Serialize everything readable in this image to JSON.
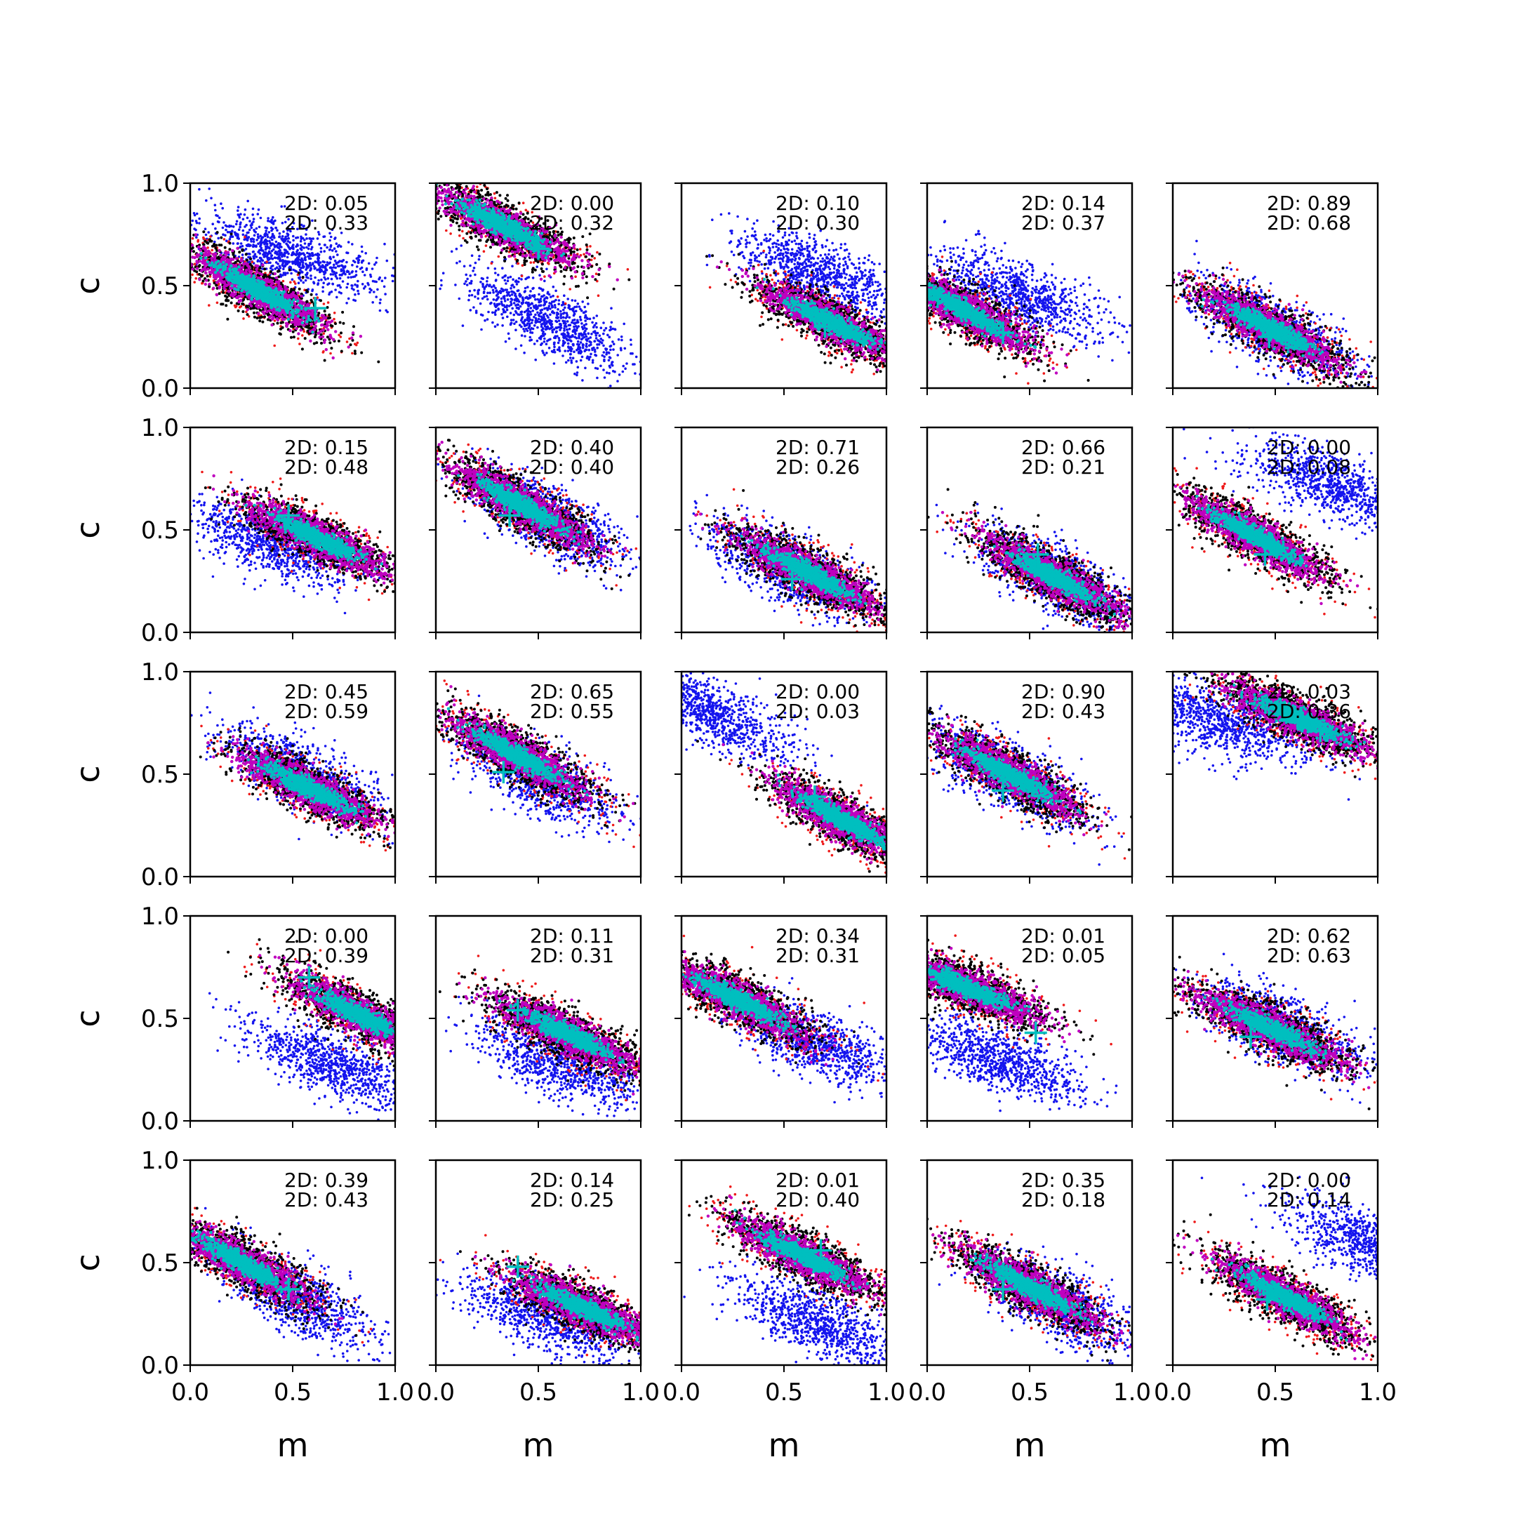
{
  "colors": {
    "blue": "#1414ee",
    "red": "#ee1a1a",
    "black": "#000000",
    "magenta": "#bf00bf",
    "cyan": "#00bfbf"
  },
  "chart_data": {
    "type": "scatter",
    "layout": "5x5 grid of scatter subplots",
    "xlabel": "m",
    "ylabel": "c",
    "xlim": [
      0.0,
      1.0
    ],
    "ylim": [
      0.0,
      1.0
    ],
    "xticks": [
      "0.0",
      "0.5",
      "1.0"
    ],
    "yticks": [
      "0.0",
      "0.5",
      "1.0"
    ],
    "grid": false,
    "legend": "none",
    "series_colors": [
      "blue",
      "red",
      "black",
      "magenta",
      "cyan"
    ],
    "marker": "cyan plus at the true parameter value",
    "panels": [
      {
        "label1": "2D: 0.05",
        "label2": "2D: 0.33",
        "blue": [
          0.5,
          0.65,
          -0.35
        ],
        "red": [
          0.33,
          0.48,
          -0.57
        ],
        "cross": [
          0.61,
          0.39
        ]
      },
      {
        "label1": "2D: 0.00",
        "label2": "2D: 0.32",
        "blue": [
          0.55,
          0.33,
          -0.55
        ],
        "red": [
          0.33,
          0.79,
          -0.52
        ],
        "cross": [
          0.5,
          0.68
        ]
      },
      {
        "label1": "2D: 0.10",
        "label2": "2D: 0.30",
        "blue": [
          0.68,
          0.56,
          -0.44
        ],
        "red": [
          0.73,
          0.32,
          -0.5
        ],
        "cross": [
          0.7,
          0.3
        ]
      },
      {
        "label1": "2D: 0.14",
        "label2": "2D: 0.37",
        "blue": [
          0.45,
          0.45,
          -0.4
        ],
        "red": [
          0.18,
          0.38,
          -0.55
        ],
        "cross": [
          0.37,
          0.27
        ]
      },
      {
        "label1": "2D: 0.89",
        "label2": "2D: 0.68",
        "blue": [
          0.48,
          0.29,
          -0.52
        ],
        "red": [
          0.48,
          0.29,
          -0.52
        ],
        "cross": [
          0.47,
          0.25
        ]
      },
      {
        "label1": "2D: 0.15",
        "label2": "2D: 0.48",
        "blue": [
          0.38,
          0.44,
          -0.4
        ],
        "red": [
          0.62,
          0.46,
          -0.48
        ],
        "cross": [
          0.48,
          0.57
        ]
      },
      {
        "label1": "2D: 0.40",
        "label2": "2D: 0.40",
        "blue": [
          0.55,
          0.55,
          -0.55
        ],
        "red": [
          0.42,
          0.62,
          -0.58
        ],
        "cross": [
          0.36,
          0.57
        ]
      },
      {
        "label1": "2D: 0.71",
        "label2": "2D: 0.26",
        "blue": [
          0.52,
          0.31,
          -0.5
        ],
        "red": [
          0.62,
          0.29,
          -0.52
        ],
        "cross": [
          0.54,
          0.26
        ]
      },
      {
        "label1": "2D: 0.66",
        "label2": "2D: 0.21",
        "blue": [
          0.62,
          0.27,
          -0.55
        ],
        "red": [
          0.62,
          0.27,
          -0.55
        ],
        "cross": [
          0.54,
          0.38
        ]
      },
      {
        "label1": "2D: 0.00",
        "label2": "2D: 0.08",
        "blue": [
          0.78,
          0.72,
          -0.4
        ],
        "red": [
          0.4,
          0.47,
          -0.55
        ],
        "cross": [
          0.45,
          0.38
        ]
      },
      {
        "label1": "2D: 0.45",
        "label2": "2D: 0.59",
        "blue": [
          0.55,
          0.5,
          -0.5
        ],
        "red": [
          0.58,
          0.43,
          -0.5
        ],
        "cross": [
          0.58,
          0.45
        ]
      },
      {
        "label1": "2D: 0.65",
        "label2": "2D: 0.55",
        "blue": [
          0.5,
          0.48,
          -0.55
        ],
        "red": [
          0.4,
          0.59,
          -0.55
        ],
        "cross": [
          0.33,
          0.51
        ]
      },
      {
        "label1": "2D: 0.00",
        "label2": "2D: 0.03",
        "blue": [
          0.15,
          0.8,
          -0.5
        ],
        "red": [
          0.78,
          0.28,
          -0.55
        ],
        "cross": [
          0.65,
          0.39
        ]
      },
      {
        "label1": "2D: 0.90",
        "label2": "2D: 0.43",
        "blue": [
          0.38,
          0.5,
          -0.55
        ],
        "red": [
          0.4,
          0.5,
          -0.55
        ],
        "cross": [
          0.37,
          0.42
        ]
      },
      {
        "label1": "2D: 0.03",
        "label2": "2D: 0.36",
        "blue": [
          0.25,
          0.75,
          -0.35
        ],
        "red": [
          0.62,
          0.77,
          -0.45
        ],
        "cross": [
          0.72,
          0.71
        ]
      },
      {
        "label1": "2D: 0.00",
        "label2": "2D: 0.39",
        "blue": [
          0.7,
          0.28,
          -0.4
        ],
        "red": [
          0.82,
          0.52,
          -0.52
        ],
        "cross": [
          0.58,
          0.7
        ]
      },
      {
        "label1": "2D: 0.11",
        "label2": "2D: 0.31",
        "blue": [
          0.6,
          0.28,
          -0.4
        ],
        "red": [
          0.65,
          0.42,
          -0.48
        ],
        "cross": [
          0.4,
          0.54
        ]
      },
      {
        "label1": "2D: 0.34",
        "label2": "2D: 0.31",
        "blue": [
          0.65,
          0.38,
          -0.45
        ],
        "red": [
          0.28,
          0.59,
          -0.52
        ],
        "cross": [
          0.3,
          0.57
        ]
      },
      {
        "label1": "2D: 0.01",
        "label2": "2D: 0.05",
        "blue": [
          0.35,
          0.3,
          -0.42
        ],
        "red": [
          0.2,
          0.65,
          -0.42
        ],
        "cross": [
          0.53,
          0.43
        ]
      },
      {
        "label1": "2D: 0.62",
        "label2": "2D: 0.63",
        "blue": [
          0.55,
          0.45,
          -0.45
        ],
        "red": [
          0.48,
          0.45,
          -0.47
        ],
        "cross": [
          0.38,
          0.41
        ]
      },
      {
        "label1": "2D: 0.39",
        "label2": "2D: 0.43",
        "blue": [
          0.5,
          0.33,
          -0.55
        ],
        "red": [
          0.25,
          0.5,
          -0.55
        ],
        "cross": [
          0.48,
          0.37
        ]
      },
      {
        "label1": "2D: 0.14",
        "label2": "2D: 0.25",
        "blue": [
          0.55,
          0.23,
          -0.4
        ],
        "red": [
          0.72,
          0.28,
          -0.45
        ],
        "cross": [
          0.4,
          0.48
        ]
      },
      {
        "label1": "2D: 0.01",
        "label2": "2D: 0.40",
        "blue": [
          0.65,
          0.22,
          -0.45
        ],
        "red": [
          0.6,
          0.53,
          -0.5
        ],
        "cross": [
          0.68,
          0.56
        ]
      },
      {
        "label1": "2D: 0.35",
        "label2": "2D: 0.18",
        "blue": [
          0.65,
          0.3,
          -0.5
        ],
        "red": [
          0.5,
          0.38,
          -0.55
        ],
        "cross": [
          0.37,
          0.37
        ]
      },
      {
        "label1": "2D: 0.00",
        "label2": "2D: 0.14",
        "blue": [
          0.95,
          0.6,
          -0.4
        ],
        "red": [
          0.55,
          0.33,
          -0.55
        ],
        "cross": [
          0.46,
          0.32
        ]
      }
    ]
  }
}
